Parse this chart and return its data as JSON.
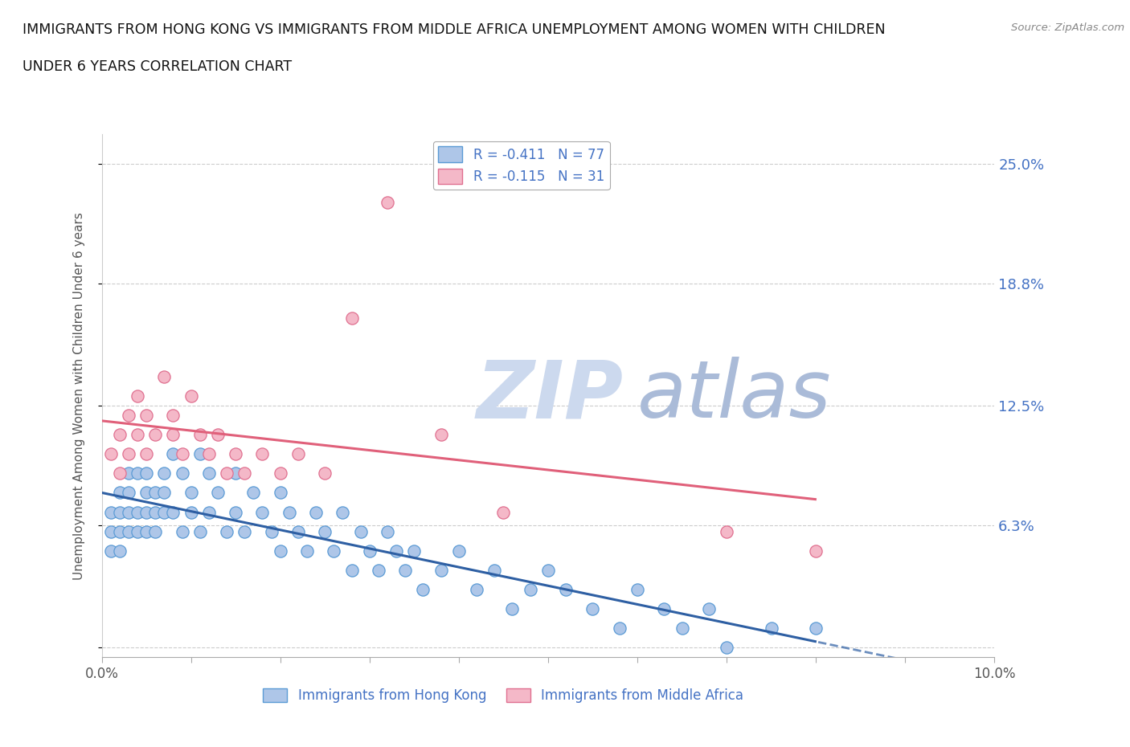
{
  "title_line1": "IMMIGRANTS FROM HONG KONG VS IMMIGRANTS FROM MIDDLE AFRICA UNEMPLOYMENT AMONG WOMEN WITH CHILDREN",
  "title_line2": "UNDER 6 YEARS CORRELATION CHART",
  "source": "Source: ZipAtlas.com",
  "ylabel": "Unemployment Among Women with Children Under 6 years",
  "xlim": [
    0.0,
    0.1
  ],
  "ylim": [
    -0.005,
    0.265
  ],
  "ytick_vals": [
    0.0,
    0.063,
    0.125,
    0.188,
    0.25
  ],
  "ytick_labels": [
    "",
    "6.3%",
    "12.5%",
    "18.8%",
    "25.0%"
  ],
  "legend_label1": "Immigrants from Hong Kong",
  "legend_label2": "Immigrants from Middle Africa",
  "r1": "-0.411",
  "n1": "77",
  "r2": "-0.115",
  "n2": "31",
  "color_hk_fill": "#aec6e8",
  "color_hk_edge": "#5b9bd5",
  "color_ma_fill": "#f4b8c8",
  "color_ma_edge": "#e07090",
  "color_hk_line": "#2e5fa3",
  "color_ma_line": "#e0607a",
  "color_label": "#4472c4",
  "watermark_zip": "ZIP",
  "watermark_atlas": "atlas",
  "hk_x": [
    0.001,
    0.001,
    0.001,
    0.002,
    0.002,
    0.002,
    0.002,
    0.003,
    0.003,
    0.003,
    0.003,
    0.004,
    0.004,
    0.004,
    0.005,
    0.005,
    0.005,
    0.005,
    0.006,
    0.006,
    0.006,
    0.007,
    0.007,
    0.007,
    0.008,
    0.008,
    0.009,
    0.009,
    0.01,
    0.01,
    0.011,
    0.011,
    0.012,
    0.012,
    0.013,
    0.014,
    0.015,
    0.015,
    0.016,
    0.017,
    0.018,
    0.019,
    0.02,
    0.02,
    0.021,
    0.022,
    0.023,
    0.024,
    0.025,
    0.026,
    0.027,
    0.028,
    0.029,
    0.03,
    0.031,
    0.032,
    0.033,
    0.034,
    0.035,
    0.036,
    0.038,
    0.04,
    0.042,
    0.044,
    0.046,
    0.048,
    0.05,
    0.052,
    0.055,
    0.058,
    0.06,
    0.063,
    0.065,
    0.068,
    0.07,
    0.075,
    0.08
  ],
  "hk_y": [
    0.06,
    0.07,
    0.05,
    0.08,
    0.06,
    0.07,
    0.05,
    0.09,
    0.07,
    0.06,
    0.08,
    0.07,
    0.09,
    0.06,
    0.08,
    0.07,
    0.06,
    0.09,
    0.08,
    0.07,
    0.06,
    0.09,
    0.07,
    0.08,
    0.1,
    0.07,
    0.09,
    0.06,
    0.08,
    0.07,
    0.1,
    0.06,
    0.09,
    0.07,
    0.08,
    0.06,
    0.09,
    0.07,
    0.06,
    0.08,
    0.07,
    0.06,
    0.08,
    0.05,
    0.07,
    0.06,
    0.05,
    0.07,
    0.06,
    0.05,
    0.07,
    0.04,
    0.06,
    0.05,
    0.04,
    0.06,
    0.05,
    0.04,
    0.05,
    0.03,
    0.04,
    0.05,
    0.03,
    0.04,
    0.02,
    0.03,
    0.04,
    0.03,
    0.02,
    0.01,
    0.03,
    0.02,
    0.01,
    0.02,
    0.0,
    0.01,
    0.01
  ],
  "ma_x": [
    0.001,
    0.002,
    0.002,
    0.003,
    0.003,
    0.004,
    0.004,
    0.005,
    0.005,
    0.006,
    0.007,
    0.008,
    0.008,
    0.009,
    0.01,
    0.011,
    0.012,
    0.013,
    0.014,
    0.015,
    0.016,
    0.018,
    0.02,
    0.022,
    0.025,
    0.028,
    0.032,
    0.038,
    0.045,
    0.07,
    0.08
  ],
  "ma_y": [
    0.1,
    0.11,
    0.09,
    0.12,
    0.1,
    0.13,
    0.11,
    0.12,
    0.1,
    0.11,
    0.14,
    0.12,
    0.11,
    0.1,
    0.13,
    0.11,
    0.1,
    0.11,
    0.09,
    0.1,
    0.09,
    0.1,
    0.09,
    0.1,
    0.09,
    0.17,
    0.23,
    0.11,
    0.07,
    0.06,
    0.05
  ]
}
